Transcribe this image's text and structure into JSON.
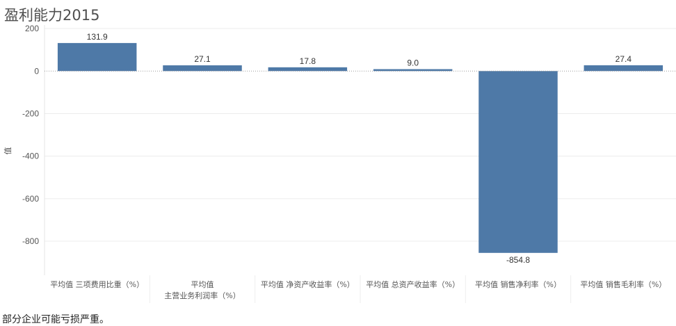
{
  "chart_data": {
    "type": "bar",
    "title": "盈利能力2015",
    "ylabel": "值",
    "xlabel": "",
    "categories": [
      [
        "平均值 三项费用比重（%）"
      ],
      [
        "平均值",
        "主营业务利润率（%）"
      ],
      [
        "平均值 净资产收益率（%）"
      ],
      [
        "平均值 总资产收益率（%）"
      ],
      [
        "平均值 销售净利率（%）"
      ],
      [
        "平均值 销售毛利率（%）"
      ]
    ],
    "values": [
      131.9,
      27.1,
      17.8,
      9.0,
      -854.8,
      27.4
    ],
    "value_labels": [
      "131.9",
      "27.1",
      "17.8",
      "9.0",
      "-854.8",
      "27.4"
    ],
    "ylim": [
      -960,
      210
    ],
    "yticks": [
      200,
      0,
      -200,
      -400,
      -600,
      -800
    ],
    "grid": true,
    "bar_color": "#4e79a7"
  },
  "caption": "部分企业可能亏损严重。"
}
